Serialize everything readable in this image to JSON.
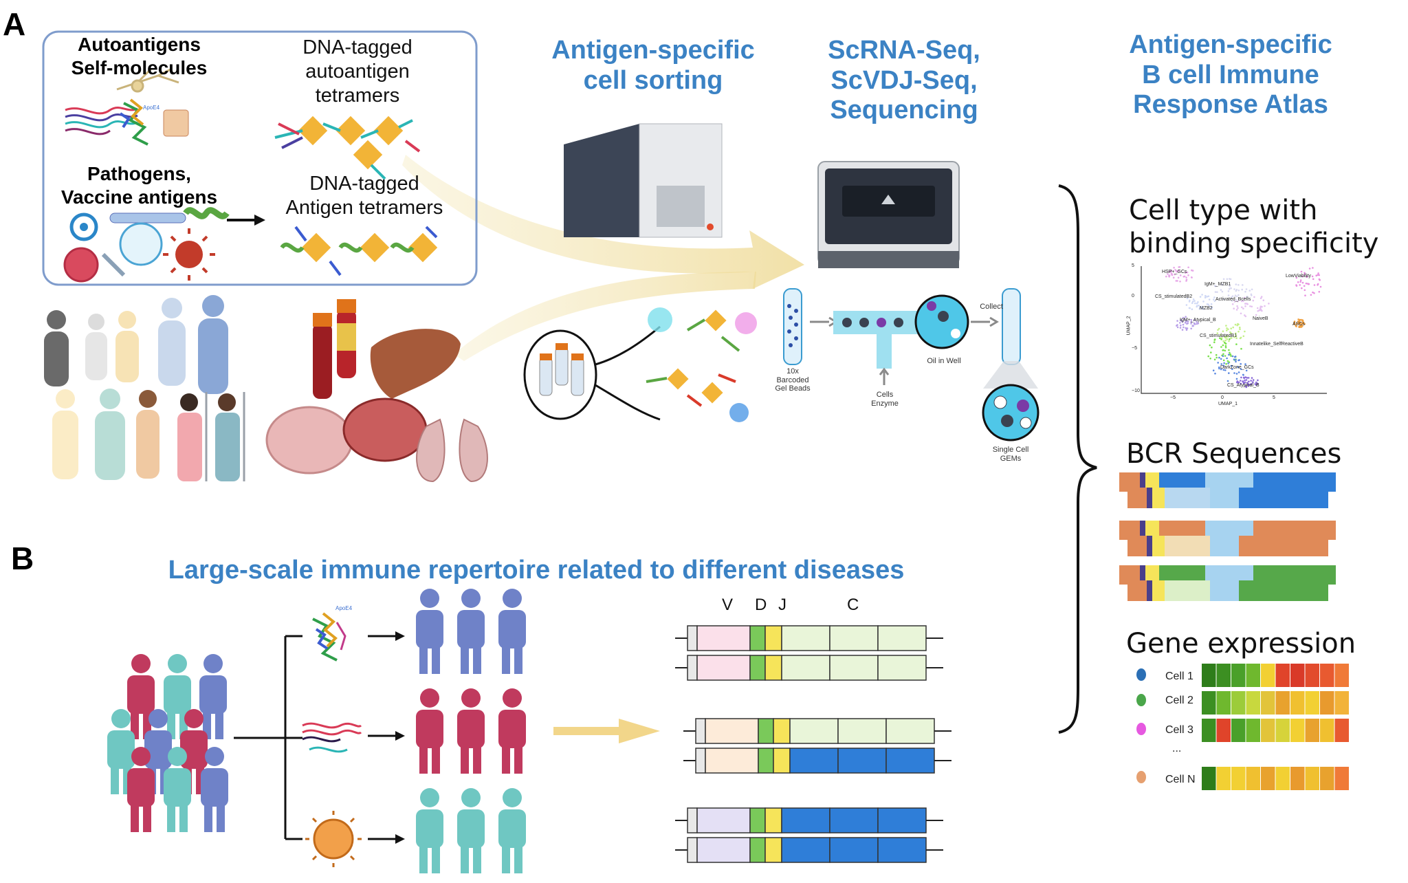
{
  "panel_a": {
    "letter": "A",
    "box": {
      "autoantigens": "Autoantigens",
      "self_molecules": "Self-molecules",
      "pathogens": "Pathogens,",
      "vaccine_antigens": "Vaccine antigens",
      "tetramer_label_1a": "DNA-tagged",
      "tetramer_label_1b": "autoantigen",
      "tetramer_label_1c": "tetramers",
      "tetramer_label_2a": "DNA-tagged",
      "tetramer_label_2b": "Antigen tetramers",
      "apoe4": "ApoE4"
    },
    "sorting_title_1": "Antigen-specific",
    "sorting_title_2": "cell sorting",
    "seq_title_1": "ScRNA-Seq,",
    "seq_title_2": "ScVDJ-Seq,",
    "seq_title_3": "Sequencing",
    "atlas_title_1": "Antigen-specific",
    "atlas_title_2": "B cell Immune",
    "atlas_title_3": "Response Atlas",
    "tenx": {
      "beads_label": "10x Barcoded Gel Beads",
      "beads_1": "10x",
      "beads_2": "Barcoded",
      "beads_3": "Gel Beads",
      "cells_1": "Cells",
      "cells_2": "Enzyme",
      "oil_label": "Oil in Well",
      "collect_label": "Collect",
      "gems_1": "Single Cell",
      "gems_2": "GEMs"
    }
  },
  "atlas": {
    "cell_type_title_1": "Cell type with",
    "cell_type_title_2": "binding specificity",
    "umap": {
      "xlabel": "UMAP_1",
      "ylabel": "UMAP_2",
      "y_ticks": [
        "5",
        "0",
        "−5",
        "−10"
      ],
      "x_ticks": [
        "−5",
        "0",
        "5"
      ],
      "clusters": [
        "HSP+_GCs",
        "IgM+_MZB1",
        "LowViability",
        "CS_stimulatedB2",
        "Activated_Bcells",
        "MZB2",
        "IgM+_Atypical_B",
        "NaiveB",
        "ASCs",
        "CS_stimulatedB1",
        "Innatelike_SelfReactiveB",
        "DarkZone_GCs",
        "CS_Atypical_B"
      ]
    },
    "bcr_title": "BCR Sequences",
    "gene_title": "Gene expression",
    "cells": [
      "Cell 1",
      "Cell 2",
      "Cell 3",
      "...",
      "Cell N"
    ]
  },
  "panel_b": {
    "letter": "B",
    "title": "Large-scale immune repertoire related to different diseases",
    "apoe4": "ApoE4",
    "segment_labels": [
      "V",
      "D",
      "J",
      "C"
    ]
  },
  "colors": {
    "heading_blue": "#3b82c4",
    "panel_blue": "#6f82c8",
    "panel_red": "#c03a5e",
    "panel_teal": "#6fc7c2",
    "arrow_gold": "#f2e2a6",
    "bcr_orange": "#e08a58",
    "bcr_blue": "#2f7ed8",
    "bcr_green": "#56a84a",
    "seg_d_green": "#7ac95a",
    "seg_j_yellow": "#f6e45a"
  },
  "heatmap": {
    "rows": [
      [
        "#2e7d1a",
        "#3c8f22",
        "#4aa02a",
        "#6fb82e",
        "#f2d033",
        "#e0442a",
        "#d93a28",
        "#e24b2c",
        "#e85a30",
        "#f07a38"
      ],
      [
        "#3c8f22",
        "#6fb82e",
        "#9ccc3a",
        "#c8d83e",
        "#e2c43a",
        "#e8a22e",
        "#f0c030",
        "#f2d033",
        "#e89a2e",
        "#f2b33a"
      ],
      [
        "#3c8f22",
        "#e0442a",
        "#4aa02a",
        "#6fb82e",
        "#e2c43a",
        "#d6d33a",
        "#f2d033",
        "#e8a22e",
        "#f0c030",
        "#e85a30"
      ],
      [
        "#2e7d1a",
        "#f2d033",
        "#f2d033",
        "#f0c030",
        "#e8a22e",
        "#f2d033",
        "#e89a2e",
        "#f0c030",
        "#e8a22e",
        "#f07a38"
      ]
    ],
    "dot_colors": [
      "#2b6fb5",
      "#4aa64a",
      "#e659e0",
      "#e6a070"
    ]
  }
}
